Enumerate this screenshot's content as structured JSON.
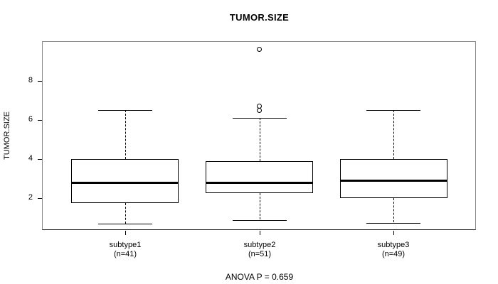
{
  "colors": {
    "frame_gray": "#8a8a8a",
    "line_black": "#000000",
    "background": "#ffffff"
  },
  "chart_data": {
    "type": "boxplot",
    "title": "TUMOR.SIZE",
    "ylabel": "TUMOR.SIZE",
    "xlabel": "",
    "annotation": "ANOVA P = 0.659",
    "ylim": [
      0.34,
      10.03
    ],
    "y_ticks": [
      2,
      4,
      6,
      8
    ],
    "grid": "off",
    "whisker_style": "dashed",
    "groups": [
      {
        "label": "subtype1",
        "sublabel": "(n=41)",
        "n": 41,
        "whisker_low": 0.7,
        "q1": 1.75,
        "median": 2.8,
        "q3": 4.0,
        "whisker_high": 6.5,
        "outliers": []
      },
      {
        "label": "subtype2",
        "sublabel": "(n=51)",
        "n": 51,
        "whisker_low": 0.9,
        "q1": 2.25,
        "median": 2.8,
        "q3": 3.9,
        "whisker_high": 6.1,
        "outliers": [
          6.5,
          6.7,
          9.6
        ]
      },
      {
        "label": "subtype3",
        "sublabel": "(n=49)",
        "n": 49,
        "whisker_low": 0.75,
        "q1": 2.0,
        "median": 2.9,
        "q3": 4.0,
        "whisker_high": 6.5,
        "outliers": []
      }
    ]
  }
}
